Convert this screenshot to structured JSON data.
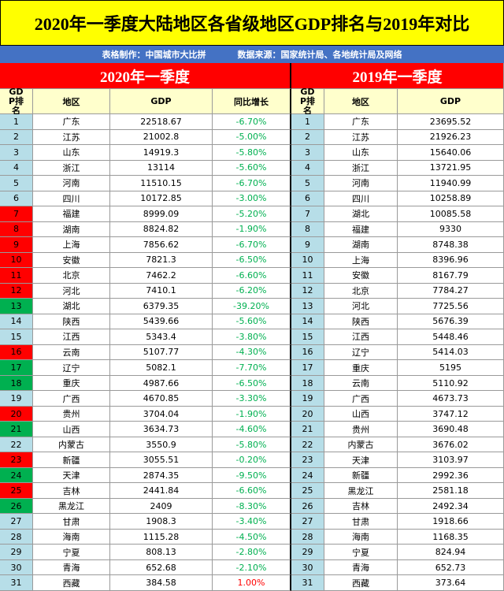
{
  "header": {
    "title": "2020年一季度大陆地区各省级地区GDP排名与2019年对比",
    "credit": "表格制作：中国城市大比拼",
    "source": "数据来源：国家统计局、各地统计局及网络"
  },
  "periods": [
    "2020年一季度",
    "2019年一季度"
  ],
  "columns": {
    "left": [
      "GDP排名",
      "地区",
      "GDP",
      "同比增长"
    ],
    "right": [
      "GDP排名",
      "地区",
      "GDP"
    ]
  },
  "rank_colors": {
    "blue": "#b7dee8",
    "red": "#ff0000",
    "green": "#00b050"
  },
  "left_rank_color": [
    "blue",
    "blue",
    "blue",
    "blue",
    "blue",
    "blue",
    "red",
    "red",
    "red",
    "red",
    "red",
    "red",
    "green",
    "blue",
    "blue",
    "red",
    "green",
    "green",
    "blue",
    "red",
    "green",
    "blue",
    "red",
    "green",
    "red",
    "green",
    "blue",
    "blue",
    "blue",
    "blue",
    "blue"
  ],
  "growth_colors": {
    "down": "#00b050",
    "up": "#ff0000"
  },
  "table": {
    "left": [
      [
        1,
        "广东",
        "22518.67",
        "-6.70%"
      ],
      [
        2,
        "江苏",
        "21002.8",
        "-5.00%"
      ],
      [
        3,
        "山东",
        "14919.3",
        "-5.80%"
      ],
      [
        4,
        "浙江",
        "13114",
        "-5.60%"
      ],
      [
        5,
        "河南",
        "11510.15",
        "-6.70%"
      ],
      [
        6,
        "四川",
        "10172.85",
        "-3.00%"
      ],
      [
        7,
        "福建",
        "8999.09",
        "-5.20%"
      ],
      [
        8,
        "湖南",
        "8824.82",
        "-1.90%"
      ],
      [
        9,
        "上海",
        "7856.62",
        "-6.70%"
      ],
      [
        10,
        "安徽",
        "7821.3",
        "-6.50%"
      ],
      [
        11,
        "北京",
        "7462.2",
        "-6.60%"
      ],
      [
        12,
        "河北",
        "7410.1",
        "-6.20%"
      ],
      [
        13,
        "湖北",
        "6379.35",
        "-39.20%"
      ],
      [
        14,
        "陕西",
        "5439.66",
        "-5.60%"
      ],
      [
        15,
        "江西",
        "5343.4",
        "-3.80%"
      ],
      [
        16,
        "云南",
        "5107.77",
        "-4.30%"
      ],
      [
        17,
        "辽宁",
        "5082.1",
        "-7.70%"
      ],
      [
        18,
        "重庆",
        "4987.66",
        "-6.50%"
      ],
      [
        19,
        "广西",
        "4670.85",
        "-3.30%"
      ],
      [
        20,
        "贵州",
        "3704.04",
        "-1.90%"
      ],
      [
        21,
        "山西",
        "3634.73",
        "-4.60%"
      ],
      [
        22,
        "内蒙古",
        "3550.9",
        "-5.80%"
      ],
      [
        23,
        "新疆",
        "3055.51",
        "-0.20%"
      ],
      [
        24,
        "天津",
        "2874.35",
        "-9.50%"
      ],
      [
        25,
        "吉林",
        "2441.84",
        "-6.60%"
      ],
      [
        26,
        "黑龙江",
        "2409",
        "-8.30%"
      ],
      [
        27,
        "甘肃",
        "1908.3",
        "-3.40%"
      ],
      [
        28,
        "海南",
        "1115.28",
        "-4.50%"
      ],
      [
        29,
        "宁夏",
        "808.13",
        "-2.80%"
      ],
      [
        30,
        "青海",
        "652.68",
        "-2.10%"
      ],
      [
        31,
        "西藏",
        "384.58",
        "1.00%"
      ]
    ],
    "right": [
      [
        1,
        "广东",
        "23695.52"
      ],
      [
        2,
        "江苏",
        "21926.23"
      ],
      [
        3,
        "山东",
        "15640.06"
      ],
      [
        4,
        "浙江",
        "13721.95"
      ],
      [
        5,
        "河南",
        "11940.99"
      ],
      [
        6,
        "四川",
        "10258.89"
      ],
      [
        7,
        "湖北",
        "10085.58"
      ],
      [
        8,
        "福建",
        "9330"
      ],
      [
        9,
        "湖南",
        "8748.38"
      ],
      [
        10,
        "上海",
        "8396.96"
      ],
      [
        11,
        "安徽",
        "8167.79"
      ],
      [
        12,
        "北京",
        "7784.27"
      ],
      [
        13,
        "河北",
        "7725.56"
      ],
      [
        14,
        "陕西",
        "5676.39"
      ],
      [
        15,
        "江西",
        "5448.46"
      ],
      [
        16,
        "辽宁",
        "5414.03"
      ],
      [
        17,
        "重庆",
        "5195"
      ],
      [
        18,
        "云南",
        "5110.92"
      ],
      [
        19,
        "广西",
        "4673.73"
      ],
      [
        20,
        "山西",
        "3747.12"
      ],
      [
        21,
        "贵州",
        "3690.48"
      ],
      [
        22,
        "内蒙古",
        "3676.02"
      ],
      [
        23,
        "天津",
        "3103.97"
      ],
      [
        24,
        "新疆",
        "2992.36"
      ],
      [
        25,
        "黑龙江",
        "2581.18"
      ],
      [
        26,
        "吉林",
        "2492.34"
      ],
      [
        27,
        "甘肃",
        "1918.66"
      ],
      [
        28,
        "海南",
        "1168.35"
      ],
      [
        29,
        "宁夏",
        "824.94"
      ],
      [
        30,
        "青海",
        "652.73"
      ],
      [
        31,
        "西藏",
        "373.64"
      ]
    ]
  }
}
